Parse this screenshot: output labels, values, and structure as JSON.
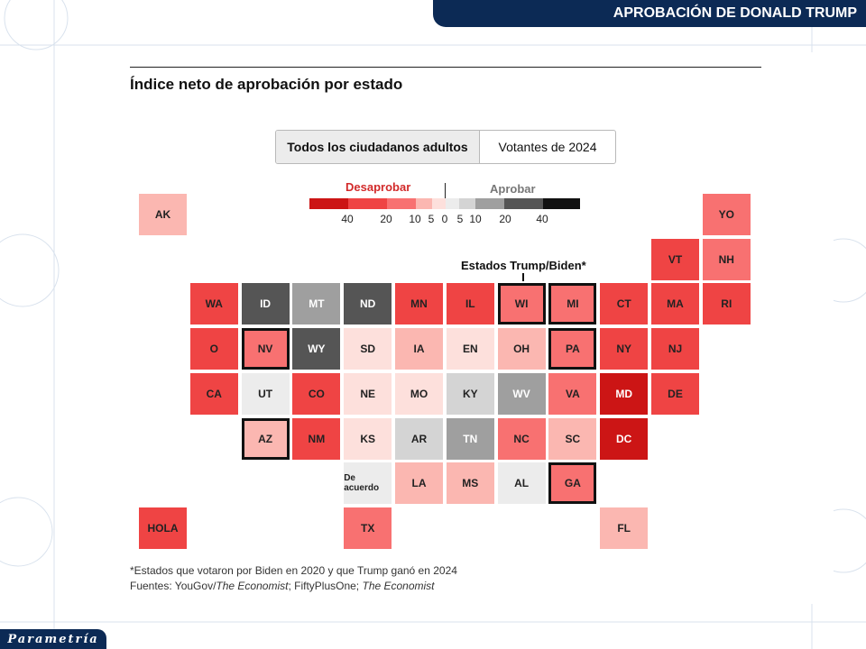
{
  "header": {
    "banner_title": "APROBACIÓN DE DONALD TRUMP"
  },
  "brand": {
    "name": "Parametría"
  },
  "chart": {
    "title": "Índice neto de aprobación por estado",
    "tabs": [
      {
        "label": "Todos los ciudadanos adultos",
        "active": true
      },
      {
        "label": "Votantes de 2024",
        "active": false
      }
    ],
    "legend": {
      "disapprove_label": "Desaprobar",
      "approve_label": "Aprobar",
      "ticks": [
        "40",
        "20",
        "10",
        "5",
        "0",
        "5",
        "10",
        "20",
        "40"
      ]
    },
    "annotation": "Estados Trump/Biden*",
    "footnote": "*Estados que votaron por Biden en 2020 y que Trump ganó en 2024",
    "sources_prefix": "Fuentes: YouGov/",
    "sources_italic_1": "The Economist",
    "sources_mid": "; FiftyPlusOne; ",
    "sources_italic_2": "The Economist"
  },
  "chart_data": {
    "type": "heatmap",
    "subtype": "tile-grid-map",
    "title": "Índice neto de aprobación por estado",
    "scale": {
      "bins": [
        "-40+",
        "-20 a -40",
        "-10 a -20",
        "-5 a -10",
        "0 a -5",
        "0 a 5",
        "5 a 10",
        "10 a 20",
        "20 a 40",
        "40+"
      ],
      "colors": [
        "#cc1515",
        "#ef4444",
        "#f87171",
        "#fbb7b1",
        "#fde0dc",
        "#ececec",
        "#d4d4d4",
        "#9f9f9f",
        "#555555",
        "#111111"
      ]
    },
    "tiles": [
      {
        "state": "AK",
        "row": 0,
        "col": 0,
        "bin": 3,
        "outlined": false
      },
      {
        "state": "YO",
        "row": 0,
        "col": 11,
        "bin": 2,
        "outlined": false
      },
      {
        "state": "VT",
        "row": 1,
        "col": 10,
        "bin": 1,
        "outlined": false
      },
      {
        "state": "NH",
        "row": 1,
        "col": 11,
        "bin": 2,
        "outlined": false
      },
      {
        "state": "WA",
        "row": 2,
        "col": 1,
        "bin": 1,
        "outlined": false
      },
      {
        "state": "ID",
        "row": 2,
        "col": 2,
        "bin": 8,
        "outlined": false
      },
      {
        "state": "MT",
        "row": 2,
        "col": 3,
        "bin": 7,
        "outlined": false
      },
      {
        "state": "ND",
        "row": 2,
        "col": 4,
        "bin": 8,
        "outlined": false
      },
      {
        "state": "MN",
        "row": 2,
        "col": 5,
        "bin": 1,
        "outlined": false
      },
      {
        "state": "IL",
        "row": 2,
        "col": 6,
        "bin": 1,
        "outlined": false
      },
      {
        "state": "WI",
        "row": 2,
        "col": 7,
        "bin": 2,
        "outlined": true
      },
      {
        "state": "MI",
        "row": 2,
        "col": 8,
        "bin": 2,
        "outlined": true
      },
      {
        "state": "CT",
        "row": 2,
        "col": 9,
        "bin": 1,
        "outlined": false
      },
      {
        "state": "MA",
        "row": 2,
        "col": 10,
        "bin": 1,
        "outlined": false
      },
      {
        "state": "RI",
        "row": 2,
        "col": 11,
        "bin": 1,
        "outlined": false
      },
      {
        "state": "O",
        "row": 3,
        "col": 1,
        "bin": 1,
        "outlined": false
      },
      {
        "state": "NV",
        "row": 3,
        "col": 2,
        "bin": 2,
        "outlined": true
      },
      {
        "state": "WY",
        "row": 3,
        "col": 3,
        "bin": 8,
        "outlined": false
      },
      {
        "state": "SD",
        "row": 3,
        "col": 4,
        "bin": 4,
        "outlined": false
      },
      {
        "state": "IA",
        "row": 3,
        "col": 5,
        "bin": 3,
        "outlined": false
      },
      {
        "state": "EN",
        "row": 3,
        "col": 6,
        "bin": 4,
        "outlined": false
      },
      {
        "state": "OH",
        "row": 3,
        "col": 7,
        "bin": 3,
        "outlined": false
      },
      {
        "state": "PA",
        "row": 3,
        "col": 8,
        "bin": 2,
        "outlined": true
      },
      {
        "state": "NY",
        "row": 3,
        "col": 9,
        "bin": 1,
        "outlined": false
      },
      {
        "state": "NJ",
        "row": 3,
        "col": 10,
        "bin": 1,
        "outlined": false
      },
      {
        "state": "CA",
        "row": 4,
        "col": 1,
        "bin": 1,
        "outlined": false
      },
      {
        "state": "UT",
        "row": 4,
        "col": 2,
        "bin": 5,
        "outlined": false
      },
      {
        "state": "CO",
        "row": 4,
        "col": 3,
        "bin": 1,
        "outlined": false
      },
      {
        "state": "NE",
        "row": 4,
        "col": 4,
        "bin": 4,
        "outlined": false
      },
      {
        "state": "MO",
        "row": 4,
        "col": 5,
        "bin": 4,
        "outlined": false
      },
      {
        "state": "KY",
        "row": 4,
        "col": 6,
        "bin": 6,
        "outlined": false
      },
      {
        "state": "WV",
        "row": 4,
        "col": 7,
        "bin": 7,
        "outlined": false
      },
      {
        "state": "VA",
        "row": 4,
        "col": 8,
        "bin": 2,
        "outlined": false
      },
      {
        "state": "MD",
        "row": 4,
        "col": 9,
        "bin": 0,
        "outlined": false
      },
      {
        "state": "DE",
        "row": 4,
        "col": 10,
        "bin": 1,
        "outlined": false
      },
      {
        "state": "AZ",
        "row": 5,
        "col": 2,
        "bin": 3,
        "outlined": true
      },
      {
        "state": "NM",
        "row": 5,
        "col": 3,
        "bin": 1,
        "outlined": false
      },
      {
        "state": "KS",
        "row": 5,
        "col": 4,
        "bin": 4,
        "outlined": false
      },
      {
        "state": "AR",
        "row": 5,
        "col": 5,
        "bin": 6,
        "outlined": false
      },
      {
        "state": "TN",
        "row": 5,
        "col": 6,
        "bin": 7,
        "outlined": false
      },
      {
        "state": "NC",
        "row": 5,
        "col": 7,
        "bin": 2,
        "outlined": false
      },
      {
        "state": "SC",
        "row": 5,
        "col": 8,
        "bin": 3,
        "outlined": false
      },
      {
        "state": "DC",
        "row": 5,
        "col": 9,
        "bin": 0,
        "outlined": false
      },
      {
        "state": "De acuerdo",
        "row": 6,
        "col": 4,
        "bin": 5,
        "outlined": false
      },
      {
        "state": "LA",
        "row": 6,
        "col": 5,
        "bin": 3,
        "outlined": false
      },
      {
        "state": "MS",
        "row": 6,
        "col": 6,
        "bin": 3,
        "outlined": false
      },
      {
        "state": "AL",
        "row": 6,
        "col": 7,
        "bin": 5,
        "outlined": false
      },
      {
        "state": "GA",
        "row": 6,
        "col": 8,
        "bin": 2,
        "outlined": true
      },
      {
        "state": "HOLA",
        "row": 7,
        "col": 0,
        "bin": 1,
        "outlined": false
      },
      {
        "state": "TX",
        "row": 7,
        "col": 4,
        "bin": 2,
        "outlined": false
      },
      {
        "state": "FL",
        "row": 7,
        "col": 9,
        "bin": 3,
        "outlined": false
      }
    ]
  }
}
